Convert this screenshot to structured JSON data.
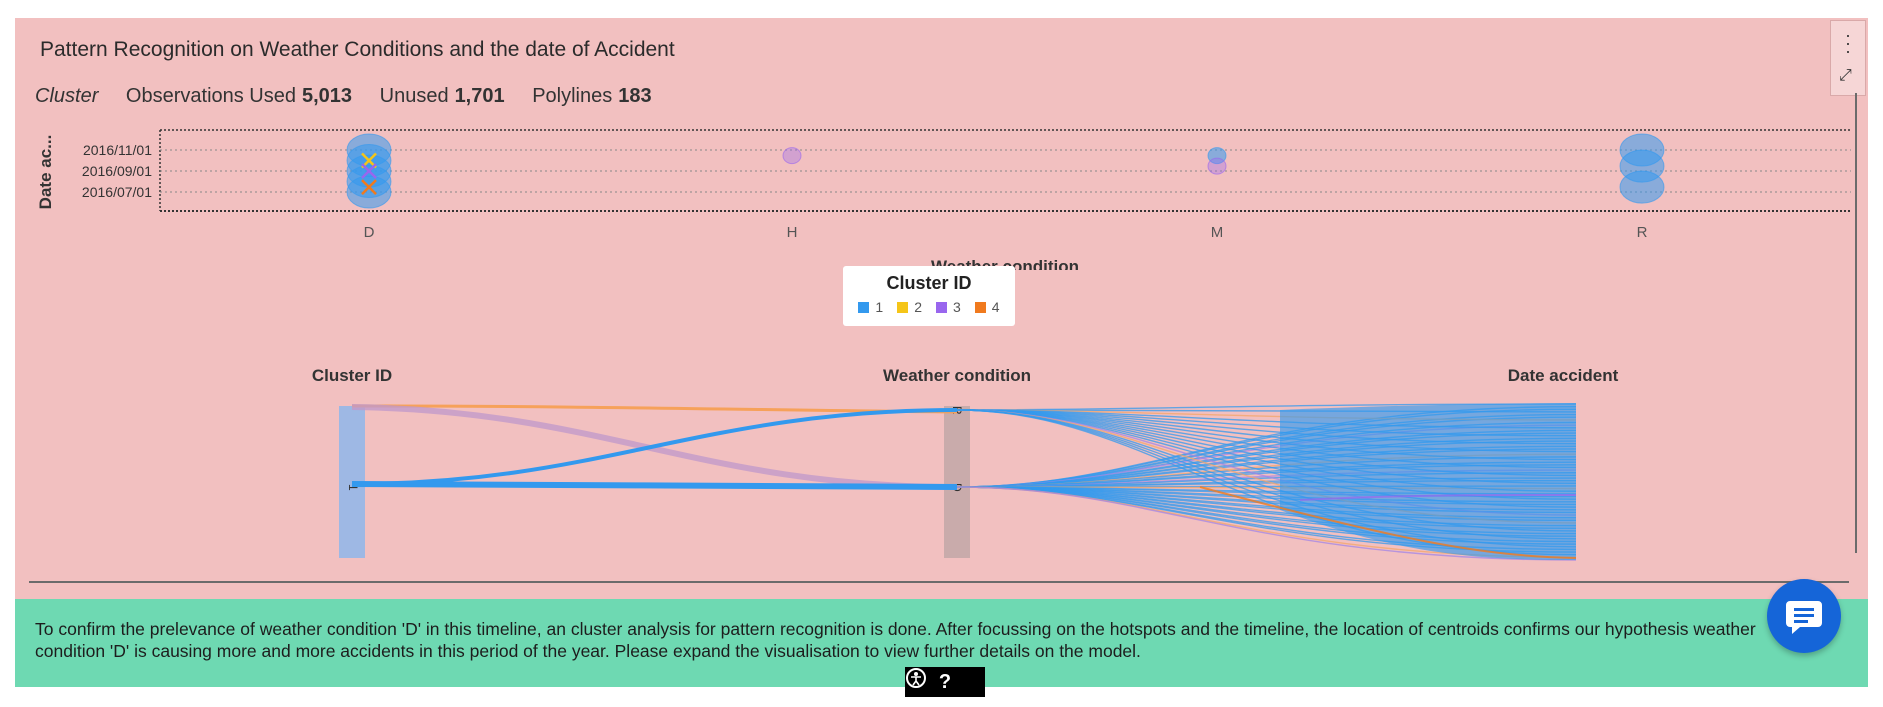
{
  "title": "Pattern Recognition on Weather Conditions and the date of Accident",
  "stats": {
    "model": "Cluster",
    "observations_label": "Observations Used",
    "observations_value": "5,013",
    "unused_label": "Unused",
    "unused_value": "1,701",
    "polylines_label": "Polylines",
    "polylines_value": "183"
  },
  "chart_data": [
    {
      "type": "scatter",
      "xlabel": "Weather condition",
      "ylabel": "Date ac...",
      "categories": [
        "D",
        "H",
        "M",
        "R"
      ],
      "yticks": [
        "2016/11/01",
        "2016/09/01",
        "2016/07/01"
      ],
      "series": [
        {
          "name": "1",
          "points": [
            {
              "x": "D",
              "y": "2016/11/01"
            },
            {
              "x": "D",
              "y": "2016/10/01"
            },
            {
              "x": "D",
              "y": "2016/09/01"
            },
            {
              "x": "D",
              "y": "2016/08/01"
            },
            {
              "x": "D",
              "y": "2016/07/01"
            },
            {
              "x": "M",
              "y": "2016/10/15"
            },
            {
              "x": "R",
              "y": "2016/11/01"
            },
            {
              "x": "R",
              "y": "2016/09/15"
            },
            {
              "x": "R",
              "y": "2016/07/15"
            }
          ]
        },
        {
          "name": "3",
          "points": [
            {
              "x": "H",
              "y": "2016/10/15"
            },
            {
              "x": "M",
              "y": "2016/09/15"
            }
          ]
        }
      ],
      "centroids": [
        {
          "x": "D",
          "y": "2016/10/01",
          "cluster": "2"
        },
        {
          "x": "D",
          "y": "2016/09/01",
          "cluster": "3"
        },
        {
          "x": "D",
          "y": "2016/07/15",
          "cluster": "4"
        }
      ]
    },
    {
      "type": "parallel-coordinates",
      "axes": [
        "Cluster ID",
        "Weather condition",
        "Date accident"
      ],
      "axis_ticks": {
        "Cluster ID": [
          "1"
        ],
        "Weather condition": [
          "R",
          "D"
        ]
      }
    }
  ],
  "legend": {
    "title": "Cluster ID",
    "items": [
      {
        "label": "1",
        "color": "#3399ee"
      },
      {
        "label": "2",
        "color": "#f5c518"
      },
      {
        "label": "3",
        "color": "#9966ee"
      },
      {
        "label": "4",
        "color": "#f07a1e"
      }
    ]
  },
  "note": "To confirm the prelevance of weather condition 'D' in this timeline, an cluster analysis for pattern recognition is done. After focussing on the hotspots and the timeline, the location of centroids confirms our hypothesis weather condition 'D' is causing more and more accidents in this period of the year. Please expand the visualisation to view further details on the model.",
  "help": {
    "question": "?"
  },
  "icons": {
    "menu": "more-vertical-icon",
    "expand": "expand-icon",
    "chat": "chat-icon",
    "accessibility": "accessibility-icon"
  }
}
